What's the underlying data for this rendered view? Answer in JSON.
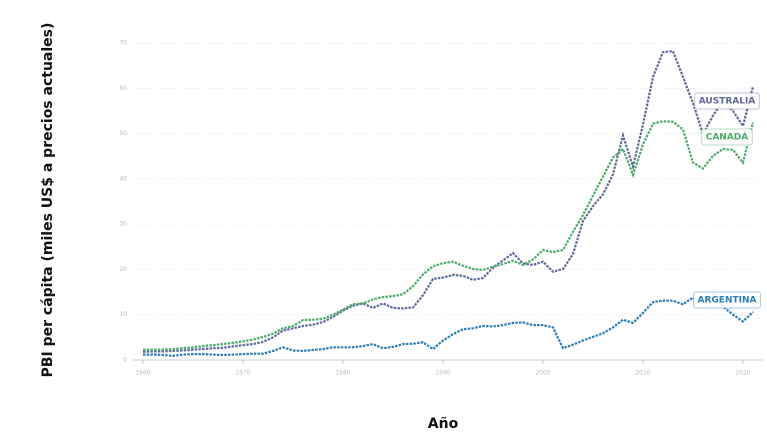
{
  "chart_data": {
    "type": "line",
    "y_label": "PBI per cápita (miles US$ a precios actuales)",
    "x_label": "Año",
    "x": [
      1960,
      1961,
      1962,
      1963,
      1964,
      1965,
      1966,
      1967,
      1968,
      1969,
      1970,
      1971,
      1972,
      1973,
      1974,
      1975,
      1976,
      1977,
      1978,
      1979,
      1980,
      1981,
      1982,
      1983,
      1984,
      1985,
      1986,
      1987,
      1988,
      1989,
      1990,
      1991,
      1992,
      1993,
      1994,
      1995,
      1996,
      1997,
      1998,
      1999,
      2000,
      2001,
      2002,
      2003,
      2004,
      2005,
      2006,
      2007,
      2008,
      2009,
      2010,
      2011,
      2012,
      2013,
      2014,
      2015,
      2016,
      2017,
      2018,
      2019,
      2020,
      2021
    ],
    "series": [
      {
        "name": "AUSTRALIA",
        "color": "#5d6a99",
        "values": [
          1.8,
          1.9,
          1.9,
          2.0,
          2.1,
          2.3,
          2.4,
          2.6,
          2.7,
          3.0,
          3.3,
          3.5,
          4.0,
          5.0,
          6.5,
          7.0,
          7.5,
          7.8,
          8.4,
          9.5,
          10.9,
          12.0,
          12.5,
          11.5,
          12.5,
          11.5,
          11.4,
          11.6,
          14.3,
          17.9,
          18.2,
          18.8,
          18.6,
          17.7,
          18.1,
          20.4,
          22.0,
          23.6,
          21.3,
          21.0,
          21.7,
          19.5,
          20.1,
          23.4,
          30.7,
          34.0,
          36.6,
          41.0,
          49.6,
          42.7,
          52.0,
          62.5,
          68.0,
          68.2,
          62.5,
          56.7,
          49.9,
          54.0,
          57.2,
          55.0,
          51.7,
          60.4
        ]
      },
      {
        "name": "CANADÁ",
        "color": "#4caa6a",
        "values": [
          2.3,
          2.3,
          2.3,
          2.4,
          2.6,
          2.8,
          3.1,
          3.3,
          3.5,
          3.8,
          4.1,
          4.5,
          5.1,
          5.8,
          7.0,
          7.5,
          8.8,
          8.9,
          9.1,
          10.0,
          11.1,
          12.3,
          12.5,
          13.4,
          13.9,
          14.1,
          14.5,
          16.3,
          18.9,
          20.7,
          21.4,
          21.7,
          20.8,
          20.1,
          19.9,
          20.6,
          21.2,
          21.9,
          21.0,
          22.2,
          24.3,
          23.8,
          24.3,
          28.3,
          32.0,
          36.3,
          40.5,
          44.7,
          46.6,
          40.9,
          47.6,
          52.2,
          52.7,
          52.6,
          50.9,
          43.6,
          42.3,
          45.1,
          46.6,
          46.4,
          43.6,
          52.5
        ]
      },
      {
        "name": "ARGENTINA",
        "color": "#2a7db8",
        "values": [
          1.2,
          1.2,
          1.1,
          0.9,
          1.2,
          1.3,
          1.3,
          1.2,
          1.1,
          1.2,
          1.3,
          1.4,
          1.4,
          2.0,
          2.8,
          2.1,
          2.0,
          2.2,
          2.4,
          2.8,
          2.8,
          2.8,
          3.1,
          3.5,
          2.6,
          2.9,
          3.5,
          3.6,
          3.9,
          2.4,
          4.3,
          5.7,
          6.8,
          7.0,
          7.5,
          7.4,
          7.7,
          8.2,
          8.3,
          7.7,
          7.7,
          7.2,
          2.6,
          3.4,
          4.3,
          5.1,
          5.9,
          7.2,
          8.9,
          8.2,
          10.4,
          12.8,
          13.1,
          13.1,
          12.3,
          13.8,
          12.8,
          14.6,
          11.8,
          10.0,
          8.5,
          10.6
        ]
      }
    ],
    "xlim": [
      1959,
      2022
    ],
    "xticks": [
      1960,
      1970,
      1980,
      1990,
      2000,
      2010,
      2020
    ],
    "ylim": [
      0,
      70
    ],
    "yticks": [
      0,
      10,
      20,
      30,
      40,
      50,
      60,
      70
    ],
    "grid": true
  }
}
